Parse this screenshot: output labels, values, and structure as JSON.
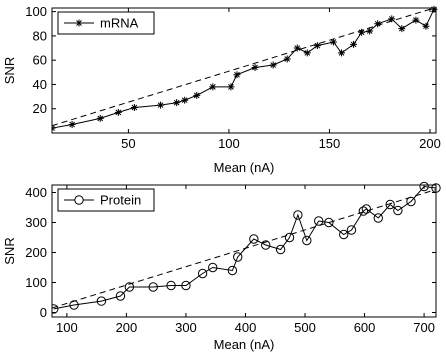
{
  "chart_data": [
    {
      "type": "line",
      "xlabel": "Mean (nA)",
      "ylabel": "SNR",
      "xlim": [
        12,
        203
      ],
      "ylim": [
        0,
        103
      ],
      "xticks": [
        "50",
        "100",
        "150",
        "200"
      ],
      "yticks": [
        "20",
        "40",
        "60",
        "80",
        "100"
      ],
      "legend": "top-left",
      "grid": false,
      "series": [
        {
          "name": "mRNA",
          "marker": "asterisk",
          "line": "solid",
          "x": [
            12,
            22,
            36,
            45,
            53,
            66,
            74,
            78,
            84,
            92,
            101,
            104,
            113,
            122,
            129,
            134,
            139,
            144,
            152,
            156,
            162,
            166,
            170,
            174,
            181,
            186,
            193,
            198,
            202
          ],
          "y": [
            4,
            7,
            12,
            17,
            21,
            23,
            25,
            27,
            31,
            38,
            38,
            48,
            54,
            56,
            61,
            70,
            66,
            72,
            75,
            66,
            73,
            83,
            84,
            90,
            94,
            86,
            93,
            88,
            102
          ]
        },
        {
          "name": "",
          "line": "dashed",
          "x": [
            12,
            202
          ],
          "y": [
            6,
            103
          ]
        }
      ]
    },
    {
      "type": "line",
      "xlabel": "Mean (nA)",
      "ylabel": "SNR",
      "xlim": [
        75,
        720
      ],
      "ylim": [
        -15,
        425
      ],
      "xticks": [
        "100",
        "200",
        "300",
        "400",
        "500",
        "600",
        "700"
      ],
      "yticks": [
        "0",
        "100",
        "200",
        "300",
        "400"
      ],
      "legend": "top-left",
      "grid": false,
      "series": [
        {
          "name": "Protein",
          "marker": "circle",
          "line": "solid",
          "x": [
            78,
            112,
            158,
            190,
            205,
            245,
            275,
            300,
            328,
            345,
            378,
            387,
            414,
            434,
            459,
            474,
            488,
            503,
            523,
            540,
            565,
            578,
            598,
            603,
            623,
            643,
            656,
            678,
            700,
            720
          ],
          "y": [
            12,
            25,
            38,
            55,
            85,
            85,
            90,
            90,
            130,
            150,
            140,
            185,
            245,
            225,
            210,
            250,
            325,
            240,
            305,
            300,
            260,
            275,
            338,
            345,
            315,
            360,
            340,
            370,
            420,
            415
          ]
        },
        {
          "name": "",
          "line": "dashed",
          "x": [
            75,
            720
          ],
          "y": [
            15,
            410
          ]
        }
      ]
    }
  ]
}
